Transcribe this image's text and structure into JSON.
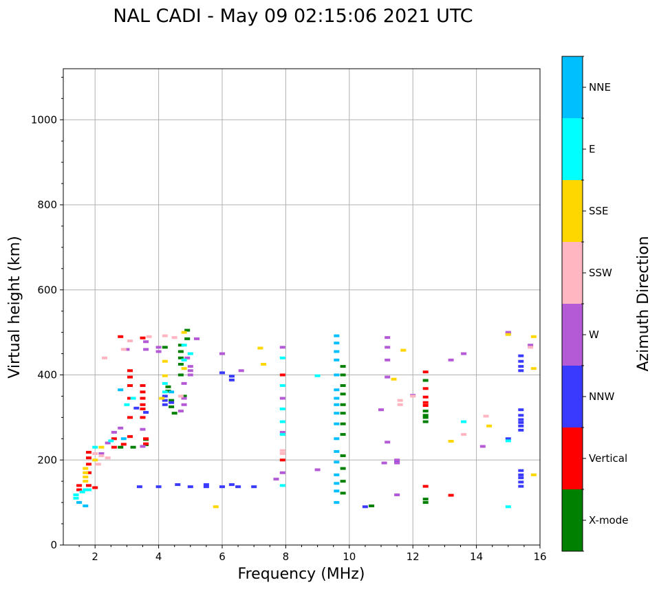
{
  "chart_data": {
    "type": "scatter",
    "title": "NAL CADI - May 09 02:15:06 2021 UTC",
    "xlabel": "Frequency (MHz)",
    "ylabel": "Virtual height (km)",
    "xlim": [
      1,
      16
    ],
    "ylim": [
      0,
      1120
    ],
    "xticks": [
      2,
      4,
      6,
      8,
      10,
      12,
      14,
      16
    ],
    "xtick_labels": [
      "2",
      "4",
      "6",
      "8",
      "10",
      "12",
      "14",
      "16"
    ],
    "yticks": [
      0,
      200,
      400,
      600,
      800,
      1000
    ],
    "ytick_labels": [
      "0",
      "200",
      "400",
      "600",
      "800",
      "1000"
    ],
    "grid": true,
    "colorbar": {
      "label": "Azimuth Direction",
      "categories": [
        {
          "name": "X-mode",
          "color": "#008000"
        },
        {
          "name": "Vertical",
          "color": "#ff0000"
        },
        {
          "name": "NNW",
          "color": "#3a3aff"
        },
        {
          "name": "W",
          "color": "#b45ad6"
        },
        {
          "name": "SSW",
          "color": "#ffb6c1"
        },
        {
          "name": "SSE",
          "color": "#ffd700"
        },
        {
          "name": "E",
          "color": "#00ffff"
        },
        {
          "name": "NNE",
          "color": "#00bfff"
        }
      ]
    },
    "series": [
      {
        "name": "X-mode",
        "points": [
          [
            4.2,
            465
          ],
          [
            4.3,
            372
          ],
          [
            4.3,
            362
          ],
          [
            4.4,
            340
          ],
          [
            4.4,
            325
          ],
          [
            3.6,
            248
          ],
          [
            3.6,
            236
          ],
          [
            4.7,
            470
          ],
          [
            4.7,
            455
          ],
          [
            4.7,
            440
          ],
          [
            4.7,
            425
          ],
          [
            4.7,
            400
          ],
          [
            4.8,
            350
          ],
          [
            4.9,
            505
          ],
          [
            4.9,
            485
          ],
          [
            9.8,
            420
          ],
          [
            9.8,
            400
          ],
          [
            9.8,
            375
          ],
          [
            9.8,
            355
          ],
          [
            9.8,
            330
          ],
          [
            9.8,
            310
          ],
          [
            9.8,
            285
          ],
          [
            9.8,
            260
          ],
          [
            9.8,
            210
          ],
          [
            9.8,
            180
          ],
          [
            9.8,
            150
          ],
          [
            9.8,
            122
          ],
          [
            12.4,
            387
          ],
          [
            12.4,
            315
          ],
          [
            12.4,
            305
          ],
          [
            12.4,
            300
          ],
          [
            12.4,
            290
          ],
          [
            12.4,
            108
          ],
          [
            12.4,
            100
          ],
          [
            10.7,
            92
          ],
          [
            2.8,
            230
          ],
          [
            3.2,
            230
          ],
          [
            4.5,
            310
          ]
        ]
      },
      {
        "name": "Vertical",
        "points": [
          [
            3.1,
            410
          ],
          [
            3.1,
            395
          ],
          [
            3.1,
            375
          ],
          [
            3.1,
            345
          ],
          [
            3.1,
            300
          ],
          [
            3.1,
            255
          ],
          [
            3.5,
            375
          ],
          [
            3.5,
            360
          ],
          [
            3.5,
            345
          ],
          [
            3.5,
            330
          ],
          [
            3.5,
            320
          ],
          [
            3.5,
            300
          ],
          [
            3.5,
            487
          ],
          [
            3.6,
            250
          ],
          [
            3.6,
            238
          ],
          [
            2.8,
            490
          ],
          [
            1.8,
            218
          ],
          [
            1.8,
            205
          ],
          [
            1.8,
            190
          ],
          [
            1.8,
            170
          ],
          [
            1.8,
            140
          ],
          [
            2.6,
            250
          ],
          [
            2.6,
            230
          ],
          [
            2.9,
            237
          ],
          [
            2.0,
            135
          ],
          [
            12.4,
            407
          ],
          [
            12.4,
            368
          ],
          [
            12.4,
            348
          ],
          [
            12.4,
            335
          ],
          [
            12.4,
            328
          ],
          [
            12.4,
            138
          ],
          [
            13.2,
            117
          ],
          [
            7.9,
            400
          ],
          [
            7.9,
            200
          ],
          [
            1.5,
            140
          ],
          [
            1.5,
            130
          ]
        ]
      },
      {
        "name": "NNW",
        "points": [
          [
            3.4,
            137
          ],
          [
            4.0,
            137
          ],
          [
            5.0,
            137
          ],
          [
            5.5,
            137
          ],
          [
            6.0,
            137
          ],
          [
            6.5,
            137
          ],
          [
            7.0,
            137
          ],
          [
            4.6,
            142
          ],
          [
            5.5,
            142
          ],
          [
            6.3,
            142
          ],
          [
            6.0,
            405
          ],
          [
            6.3,
            397
          ],
          [
            6.3,
            388
          ],
          [
            3.3,
            322
          ],
          [
            3.6,
            312
          ],
          [
            4.2,
            350
          ],
          [
            4.2,
            340
          ],
          [
            4.2,
            330
          ],
          [
            4.4,
            335
          ],
          [
            15.4,
            445
          ],
          [
            15.4,
            432
          ],
          [
            15.4,
            420
          ],
          [
            15.4,
            410
          ],
          [
            15.4,
            318
          ],
          [
            15.4,
            305
          ],
          [
            15.4,
            295
          ],
          [
            15.4,
            288
          ],
          [
            15.4,
            280
          ],
          [
            15.4,
            270
          ],
          [
            15.4,
            175
          ],
          [
            15.4,
            165
          ],
          [
            15.4,
            158
          ],
          [
            15.4,
            148
          ],
          [
            15.4,
            138
          ],
          [
            15.0,
            250
          ],
          [
            15.0,
            497
          ],
          [
            10.5,
            90
          ],
          [
            11.5,
            195
          ]
        ]
      },
      {
        "name": "W",
        "points": [
          [
            3.6,
            478
          ],
          [
            3.6,
            460
          ],
          [
            4.0,
            465
          ],
          [
            4.0,
            455
          ],
          [
            3.5,
            272
          ],
          [
            3.5,
            232
          ],
          [
            3.0,
            460
          ],
          [
            4.9,
            440
          ],
          [
            5.0,
            420
          ],
          [
            5.0,
            410
          ],
          [
            5.0,
            400
          ],
          [
            4.8,
            380
          ],
          [
            4.8,
            345
          ],
          [
            4.8,
            330
          ],
          [
            4.7,
            315
          ],
          [
            5.2,
            485
          ],
          [
            6.0,
            450
          ],
          [
            6.6,
            410
          ],
          [
            7.9,
            465
          ],
          [
            7.9,
            345
          ],
          [
            7.9,
            265
          ],
          [
            7.9,
            170
          ],
          [
            9.0,
            177
          ],
          [
            11.2,
            488
          ],
          [
            11.2,
            465
          ],
          [
            11.2,
            435
          ],
          [
            11.2,
            395
          ],
          [
            11.2,
            242
          ],
          [
            11.5,
            200
          ],
          [
            11.5,
            193
          ],
          [
            11.0,
            318
          ],
          [
            11.5,
            118
          ],
          [
            13.2,
            435
          ],
          [
            13.6,
            450
          ],
          [
            14.2,
            232
          ],
          [
            15.0,
            500
          ],
          [
            15.7,
            470
          ],
          [
            12.0,
            352
          ],
          [
            2.2,
            215
          ],
          [
            2.4,
            240
          ],
          [
            2.6,
            265
          ],
          [
            2.8,
            275
          ],
          [
            7.7,
            155
          ],
          [
            11.1,
            193
          ]
        ]
      },
      {
        "name": "SSW",
        "points": [
          [
            2.3,
            440
          ],
          [
            3.7,
            490
          ],
          [
            4.2,
            492
          ],
          [
            4.5,
            488
          ],
          [
            2.0,
            215
          ],
          [
            2.2,
            210
          ],
          [
            2.4,
            205
          ],
          [
            2.1,
            190
          ],
          [
            4.7,
            350
          ],
          [
            11.6,
            340
          ],
          [
            11.6,
            330
          ],
          [
            13.6,
            260
          ],
          [
            14.3,
            303
          ],
          [
            15.7,
            465
          ],
          [
            7.9,
            222
          ],
          [
            7.9,
            215
          ],
          [
            12.0,
            350
          ],
          [
            3.1,
            480
          ],
          [
            2.9,
            460
          ]
        ]
      },
      {
        "name": "SSE",
        "points": [
          [
            4.2,
            432
          ],
          [
            4.2,
            398
          ],
          [
            4.8,
            500
          ],
          [
            4.8,
            415
          ],
          [
            7.2,
            463
          ],
          [
            7.3,
            425
          ],
          [
            11.4,
            390
          ],
          [
            11.7,
            458
          ],
          [
            13.2,
            244
          ],
          [
            14.4,
            280
          ],
          [
            15.0,
            495
          ],
          [
            15.8,
            490
          ],
          [
            15.8,
            415
          ],
          [
            15.8,
            165
          ],
          [
            1.7,
            170
          ],
          [
            1.7,
            160
          ],
          [
            1.7,
            150
          ],
          [
            1.7,
            180
          ],
          [
            2.0,
            200
          ],
          [
            2.2,
            230
          ],
          [
            5.8,
            90
          ],
          [
            4.1,
            345
          ]
        ]
      },
      {
        "name": "E",
        "points": [
          [
            1.4,
            118
          ],
          [
            1.4,
            110
          ],
          [
            1.7,
            130
          ],
          [
            1.8,
            130
          ],
          [
            4.8,
            470
          ],
          [
            4.8,
            435
          ],
          [
            5.0,
            450
          ],
          [
            4.2,
            380
          ],
          [
            4.2,
            360
          ],
          [
            7.9,
            440
          ],
          [
            7.9,
            375
          ],
          [
            7.9,
            320
          ],
          [
            7.9,
            290
          ],
          [
            7.9,
            260
          ],
          [
            7.9,
            140
          ],
          [
            9.0,
            398
          ],
          [
            13.6,
            290
          ],
          [
            15.0,
            90
          ],
          [
            15.0,
            245
          ],
          [
            2.0,
            230
          ],
          [
            2.5,
            245
          ],
          [
            3.0,
            330
          ],
          [
            3.2,
            345
          ],
          [
            1.6,
            125
          ]
        ]
      },
      {
        "name": "NNE",
        "points": [
          [
            9.6,
            492
          ],
          [
            9.6,
            475
          ],
          [
            9.6,
            455
          ],
          [
            9.6,
            435
          ],
          [
            9.6,
            400
          ],
          [
            9.6,
            365
          ],
          [
            9.6,
            345
          ],
          [
            9.6,
            330
          ],
          [
            9.6,
            310
          ],
          [
            9.6,
            285
          ],
          [
            9.6,
            250
          ],
          [
            9.6,
            220
          ],
          [
            9.6,
            195
          ],
          [
            9.6,
            165
          ],
          [
            9.6,
            145
          ],
          [
            9.6,
            127
          ],
          [
            9.6,
            100
          ],
          [
            1.7,
            92
          ],
          [
            1.5,
            100
          ],
          [
            2.8,
            365
          ],
          [
            2.9,
            250
          ],
          [
            4.4,
            360
          ]
        ]
      }
    ]
  }
}
